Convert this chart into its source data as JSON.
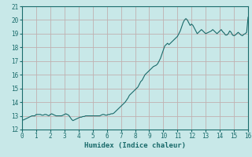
{
  "xlabel": "Humidex (Indice chaleur)",
  "ylabel": "",
  "xlim": [
    0,
    16
  ],
  "ylim": [
    12,
    21
  ],
  "xticks": [
    0,
    1,
    2,
    3,
    4,
    5,
    6,
    7,
    8,
    9,
    10,
    11,
    12,
    13,
    14,
    15,
    16
  ],
  "yticks": [
    12,
    13,
    14,
    15,
    16,
    17,
    18,
    19,
    20,
    21
  ],
  "background_color": "#c8e8e8",
  "grid_color": "#c0b0b0",
  "line_color": "#1a6b6b",
  "x": [
    0.0,
    0.1,
    0.2,
    0.3,
    0.4,
    0.5,
    0.6,
    0.7,
    0.8,
    0.9,
    1.0,
    1.1,
    1.2,
    1.3,
    1.4,
    1.5,
    1.6,
    1.7,
    1.8,
    1.9,
    2.0,
    2.1,
    2.2,
    2.3,
    2.4,
    2.5,
    2.6,
    2.7,
    2.8,
    2.9,
    3.0,
    3.1,
    3.2,
    3.3,
    3.4,
    3.5,
    3.6,
    3.7,
    3.8,
    3.9,
    4.0,
    4.1,
    4.2,
    4.3,
    4.4,
    4.5,
    4.6,
    4.7,
    4.8,
    4.9,
    5.0,
    5.1,
    5.2,
    5.3,
    5.4,
    5.5,
    5.6,
    5.7,
    5.8,
    5.9,
    6.0,
    6.1,
    6.2,
    6.3,
    6.4,
    6.5,
    6.6,
    6.7,
    6.8,
    6.9,
    7.0,
    7.1,
    7.2,
    7.3,
    7.4,
    7.5,
    7.6,
    7.7,
    7.8,
    7.9,
    8.0,
    8.1,
    8.2,
    8.3,
    8.4,
    8.5,
    8.6,
    8.7,
    8.8,
    8.9,
    9.0,
    9.1,
    9.2,
    9.3,
    9.4,
    9.5,
    9.6,
    9.7,
    9.8,
    9.9,
    10.0,
    10.1,
    10.2,
    10.3,
    10.4,
    10.5,
    10.6,
    10.7,
    10.8,
    10.9,
    11.0,
    11.1,
    11.2,
    11.3,
    11.4,
    11.5,
    11.6,
    11.7,
    11.8,
    11.9,
    12.0,
    12.1,
    12.2,
    12.3,
    12.4,
    12.5,
    12.6,
    12.7,
    12.8,
    12.9,
    13.0,
    13.1,
    13.2,
    13.3,
    13.4,
    13.5,
    13.6,
    13.7,
    13.8,
    13.9,
    14.0,
    14.1,
    14.2,
    14.3,
    14.4,
    14.5,
    14.6,
    14.7,
    14.8,
    14.9,
    15.0,
    15.1,
    15.2,
    15.3,
    15.4,
    15.5,
    15.6,
    15.7,
    15.8,
    15.9,
    16.0
  ],
  "y": [
    12.7,
    12.7,
    12.75,
    12.8,
    12.85,
    12.9,
    12.95,
    13.0,
    13.0,
    13.0,
    13.1,
    13.1,
    13.1,
    13.1,
    13.05,
    13.05,
    13.1,
    13.1,
    13.05,
    13.0,
    13.1,
    13.15,
    13.1,
    13.05,
    13.0,
    13.0,
    13.0,
    13.0,
    13.0,
    13.05,
    13.1,
    13.15,
    13.1,
    13.05,
    12.9,
    12.75,
    12.65,
    12.7,
    12.75,
    12.8,
    12.85,
    12.9,
    12.9,
    12.95,
    12.95,
    13.0,
    13.0,
    13.0,
    13.0,
    13.0,
    13.0,
    13.0,
    13.0,
    13.0,
    13.0,
    13.0,
    13.05,
    13.1,
    13.1,
    13.05,
    13.05,
    13.1,
    13.1,
    13.15,
    13.15,
    13.2,
    13.3,
    13.4,
    13.5,
    13.6,
    13.7,
    13.8,
    13.9,
    14.0,
    14.15,
    14.3,
    14.5,
    14.6,
    14.7,
    14.8,
    14.9,
    15.0,
    15.1,
    15.3,
    15.5,
    15.6,
    15.8,
    16.0,
    16.1,
    16.2,
    16.3,
    16.4,
    16.5,
    16.6,
    16.65,
    16.7,
    16.8,
    17.0,
    17.2,
    17.5,
    17.8,
    18.1,
    18.2,
    18.3,
    18.2,
    18.3,
    18.4,
    18.5,
    18.6,
    18.7,
    18.8,
    19.0,
    19.2,
    19.5,
    19.8,
    20.0,
    20.1,
    20.0,
    19.8,
    19.6,
    19.7,
    19.6,
    19.4,
    19.2,
    19.0,
    19.1,
    19.2,
    19.3,
    19.2,
    19.1,
    19.0,
    19.05,
    19.1,
    19.15,
    19.2,
    19.3,
    19.2,
    19.1,
    19.0,
    19.1,
    19.2,
    19.3,
    19.15,
    19.05,
    18.9,
    18.9,
    19.0,
    19.2,
    19.1,
    18.9,
    18.85,
    18.9,
    19.0,
    19.1,
    19.0,
    18.9,
    18.85,
    18.95,
    19.0,
    19.1,
    20.2
  ]
}
